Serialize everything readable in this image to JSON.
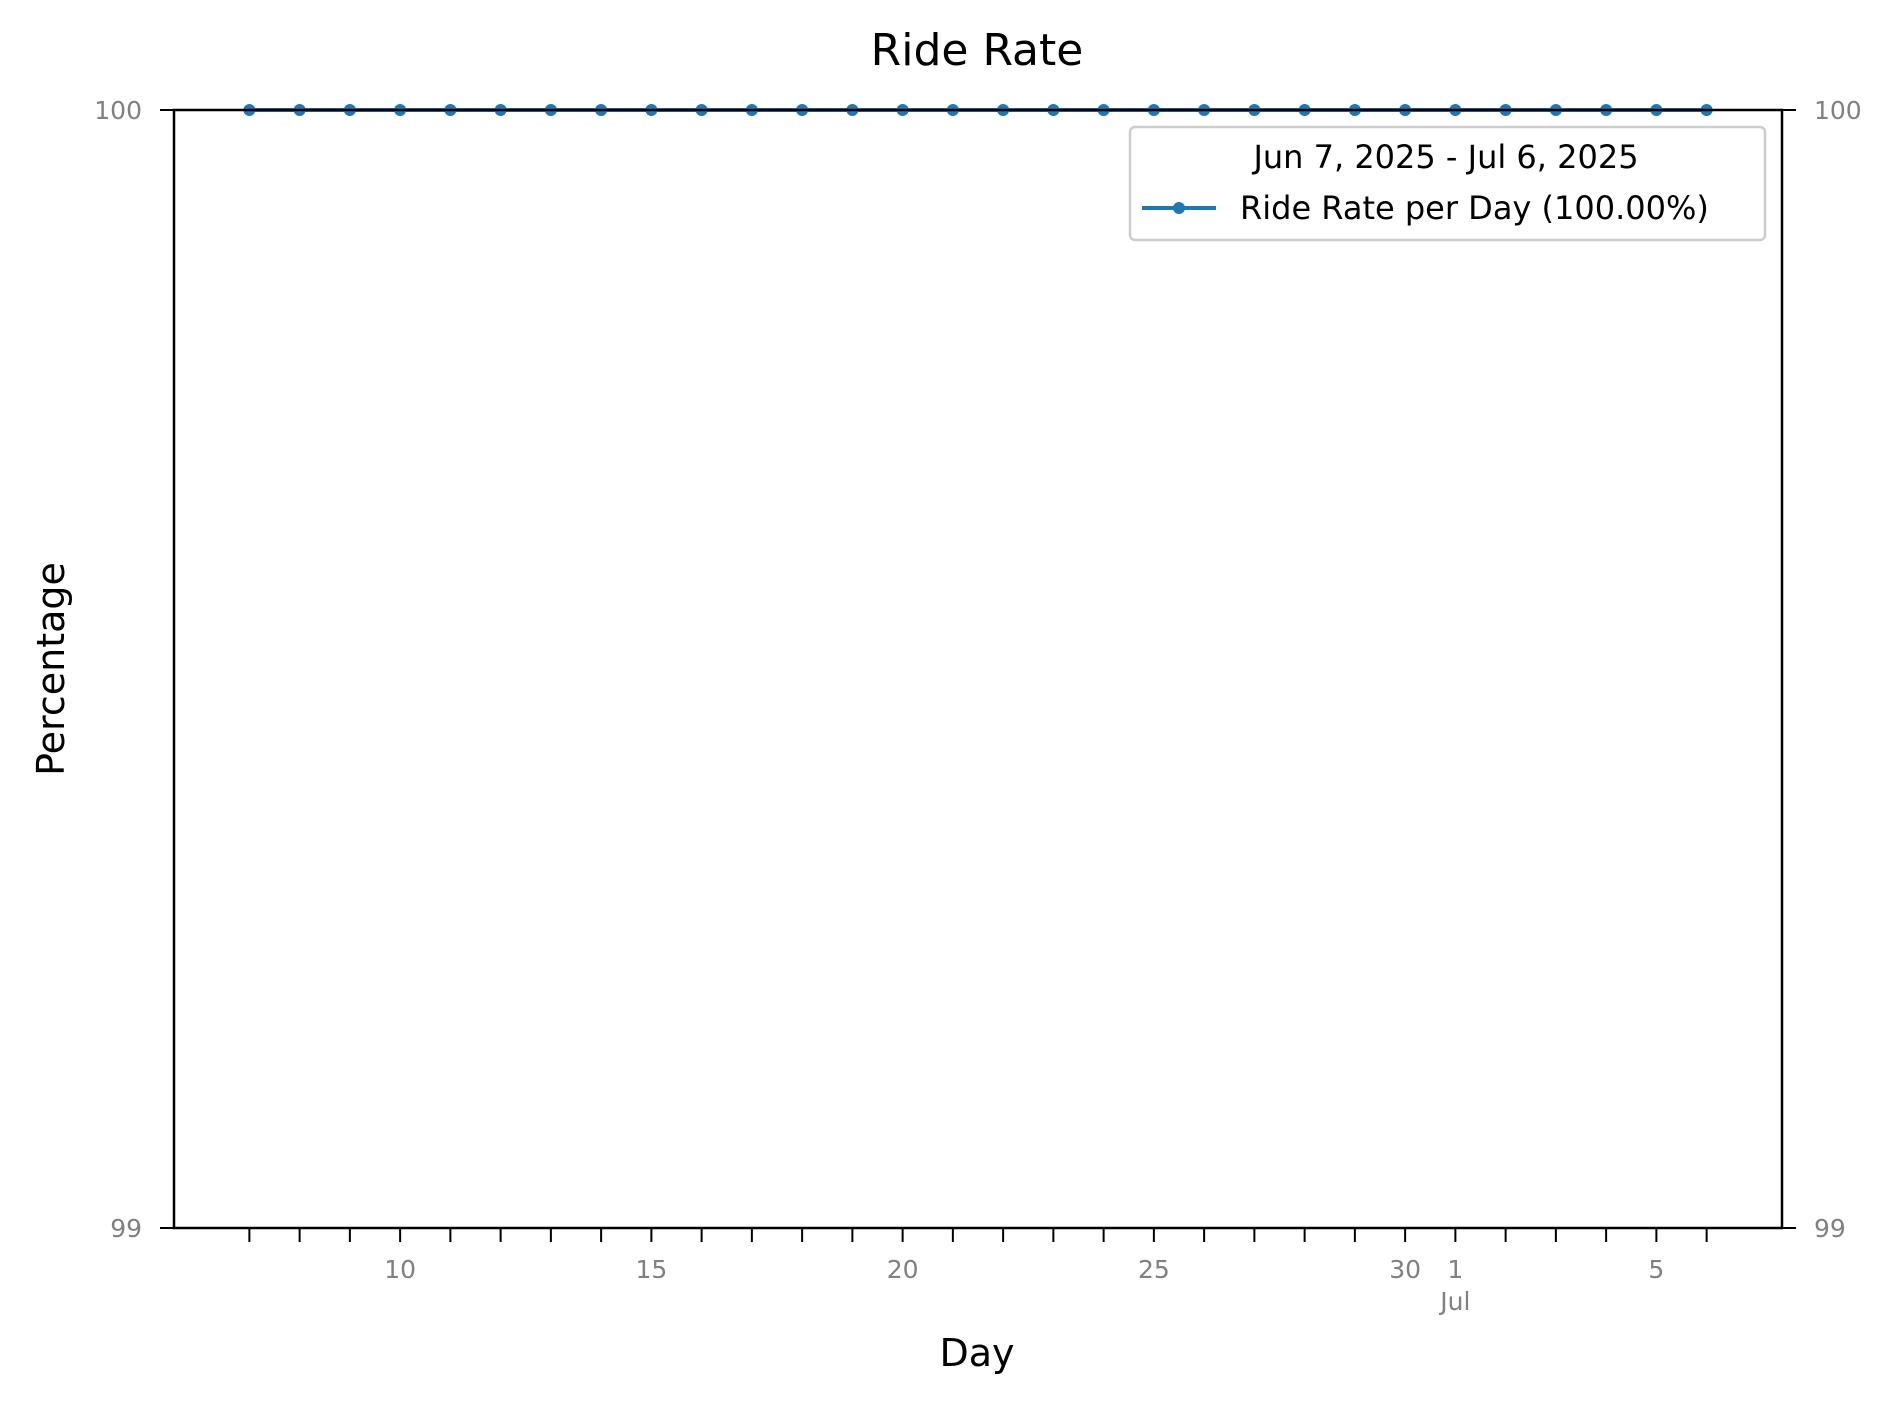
{
  "chart_data": {
    "type": "line",
    "title": "Ride Rate",
    "xlabel": "Day",
    "ylabel": "Percentage",
    "x_start": "2025-06-07",
    "x_end": "2025-07-06",
    "xlim": [
      "2025-06-05.5",
      "2025-07-07.5"
    ],
    "ylim": [
      99,
      100
    ],
    "y_ticks": [
      "99",
      "100"
    ],
    "secondary_y_ticks": [
      "99",
      "100"
    ],
    "x_ticks_major": [
      {
        "date": "2025-06-10",
        "label": "10"
      },
      {
        "date": "2025-06-15",
        "label": "15"
      },
      {
        "date": "2025-06-20",
        "label": "20"
      },
      {
        "date": "2025-06-25",
        "label": "25"
      },
      {
        "date": "2025-06-30",
        "label": "30"
      },
      {
        "date": "2025-07-01",
        "label": "1",
        "sublabel": "Jul"
      },
      {
        "date": "2025-07-05",
        "label": "5"
      }
    ],
    "legend_title": "Jun  7, 2025 - Jul  6, 2025",
    "legend_position": "upper right",
    "grid": false,
    "series": [
      {
        "name": "Ride Rate per Day (100.00%)",
        "color": "#1f77b4",
        "marker": "circle",
        "x": [
          "2025-06-07",
          "2025-06-08",
          "2025-06-09",
          "2025-06-10",
          "2025-06-11",
          "2025-06-12",
          "2025-06-13",
          "2025-06-14",
          "2025-06-15",
          "2025-06-16",
          "2025-06-17",
          "2025-06-18",
          "2025-06-19",
          "2025-06-20",
          "2025-06-21",
          "2025-06-22",
          "2025-06-23",
          "2025-06-24",
          "2025-06-25",
          "2025-06-26",
          "2025-06-27",
          "2025-06-28",
          "2025-06-29",
          "2025-06-30",
          "2025-07-01",
          "2025-07-02",
          "2025-07-03",
          "2025-07-04",
          "2025-07-05",
          "2025-07-06"
        ],
        "values": [
          100,
          100,
          100,
          100,
          100,
          100,
          100,
          100,
          100,
          100,
          100,
          100,
          100,
          100,
          100,
          100,
          100,
          100,
          100,
          100,
          100,
          100,
          100,
          100,
          100,
          100,
          100,
          100,
          100,
          100
        ]
      }
    ]
  }
}
